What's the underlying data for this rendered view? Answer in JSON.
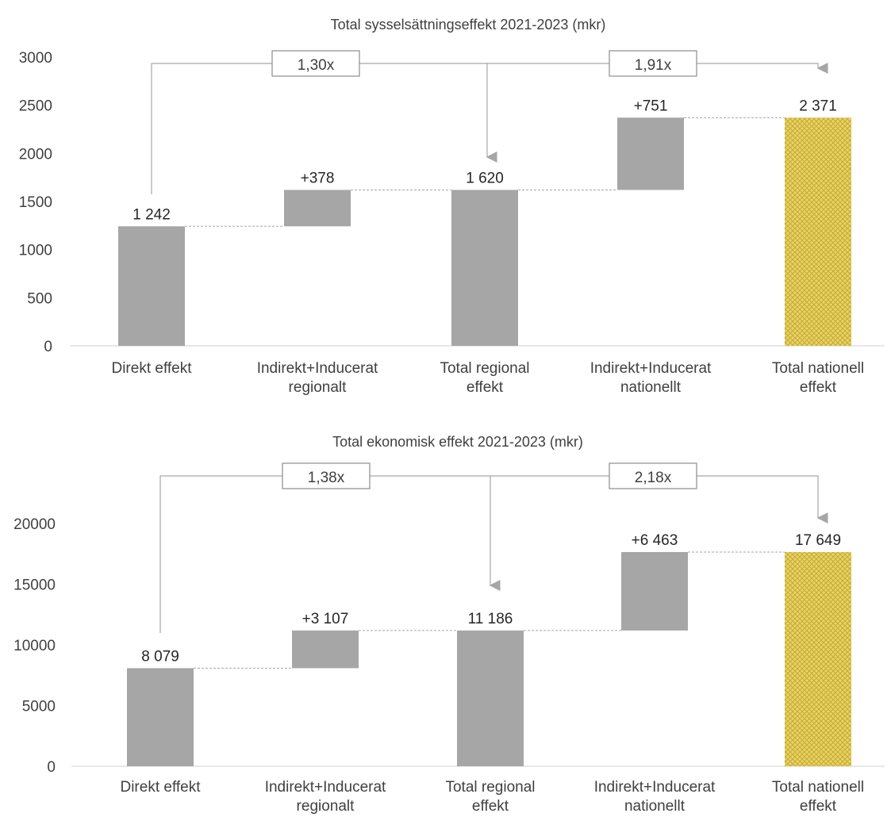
{
  "colors": {
    "bar": "#a6a6a6",
    "total_fill": "#e6d36a",
    "total_pattern": "#c8aa2e",
    "axis": "#d9d9d9",
    "connector": "#a6a6a6",
    "text": "#404040"
  },
  "chart_data": [
    {
      "type": "bar",
      "subtype": "waterfall",
      "title": "Total sysselsättningseffekt 2021-2023 (mkr)",
      "categories": [
        "Direkt effekt",
        "Indirekt+Inducerat regionalt",
        "Total regional effekt",
        "Indirekt+Inducerat nationellt",
        "Total nationell effekt"
      ],
      "category_lines": [
        [
          "Direkt effekt"
        ],
        [
          "Indirekt+Inducerat",
          "regionalt"
        ],
        [
          "Total regional",
          "effekt"
        ],
        [
          "Indirekt+Inducerat",
          "nationellt"
        ],
        [
          "Total nationell",
          "effekt"
        ]
      ],
      "bar_base": [
        0,
        1242,
        0,
        1620,
        0
      ],
      "bar_top": [
        1242,
        1620,
        1620,
        2371,
        2371
      ],
      "data_labels": [
        "1 242",
        "+378",
        "1 620",
        "+751",
        "2 371"
      ],
      "yticks": [
        0,
        500,
        1000,
        1500,
        2000,
        2500,
        3000
      ],
      "ytick_labels": [
        "0",
        "500",
        "1000",
        "1500",
        "2000",
        "2500",
        "3000"
      ],
      "ylim": [
        0,
        3000
      ],
      "multipliers": [
        {
          "label": "1,30x",
          "from": 0,
          "to": 2
        },
        {
          "label": "1,91x",
          "from": 2,
          "to": 4
        }
      ],
      "grid": false,
      "legend": "none"
    },
    {
      "type": "bar",
      "subtype": "waterfall",
      "title": "Total ekonomisk effekt 2021-2023 (mkr)",
      "categories": [
        "Direkt effekt",
        "Indirekt+Inducerat regionalt",
        "Total regional effekt",
        "Indirekt+Inducerat nationellt",
        "Total nationell effekt"
      ],
      "category_lines": [
        [
          "Direkt effekt"
        ],
        [
          "Indirekt+Inducerat",
          "regionalt"
        ],
        [
          "Total regional",
          "effekt"
        ],
        [
          "Indirekt+Inducerat",
          "nationellt"
        ],
        [
          "Total nationell",
          "effekt"
        ]
      ],
      "bar_base": [
        0,
        8079,
        0,
        11186,
        0
      ],
      "bar_top": [
        8079,
        11186,
        11186,
        17649,
        17649
      ],
      "data_labels": [
        "8 079",
        "+3 107",
        "11 186",
        "+6 463",
        "17 649"
      ],
      "yticks": [
        0,
        5000,
        10000,
        15000,
        20000
      ],
      "ytick_labels": [
        "0",
        "5000",
        "10000",
        "15000",
        "20000"
      ],
      "ylim": [
        0,
        25000
      ],
      "multipliers": [
        {
          "label": "1,38x",
          "from": 0,
          "to": 2
        },
        {
          "label": "2,18x",
          "from": 2,
          "to": 4
        }
      ],
      "grid": false,
      "legend": "none"
    }
  ]
}
